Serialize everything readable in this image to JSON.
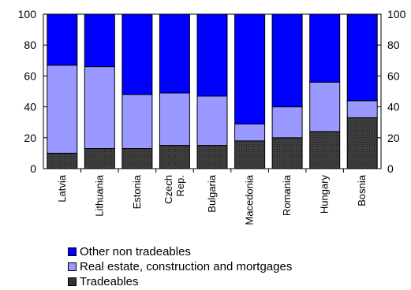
{
  "chart_data": {
    "type": "bar",
    "stacked": true,
    "title": "",
    "xlabel": "",
    "ylabel": "",
    "ylim": [
      0,
      100
    ],
    "yticks": [
      0,
      20,
      40,
      60,
      80,
      100
    ],
    "y_axis_both_sides": true,
    "categories": [
      [
        "Latvia"
      ],
      [
        "Lithuania"
      ],
      [
        "Estonia"
      ],
      [
        "Czech",
        "Rep."
      ],
      [
        "Bulgaria"
      ],
      [
        "Macedonia"
      ],
      [
        "Romania"
      ],
      [
        "Hungary"
      ],
      [
        "Bosnia"
      ]
    ],
    "series": [
      {
        "name": "Tradeables",
        "color": "#3a3a3a",
        "pattern": "dotted-dark",
        "values": [
          10,
          13,
          13,
          15,
          15,
          18,
          20,
          24,
          33
        ]
      },
      {
        "name": "Real estate, construction and mortgages",
        "color": "#9999ff",
        "values": [
          57,
          53,
          35,
          34,
          32,
          11,
          20,
          32,
          11
        ]
      },
      {
        "name": "Other non tradeables",
        "color": "#0000ff",
        "values": [
          33,
          34,
          52,
          51,
          53,
          71,
          60,
          44,
          56
        ]
      }
    ],
    "legend_order": [
      2,
      1,
      0
    ],
    "legend_position": "bottom-left",
    "grid": false
  }
}
